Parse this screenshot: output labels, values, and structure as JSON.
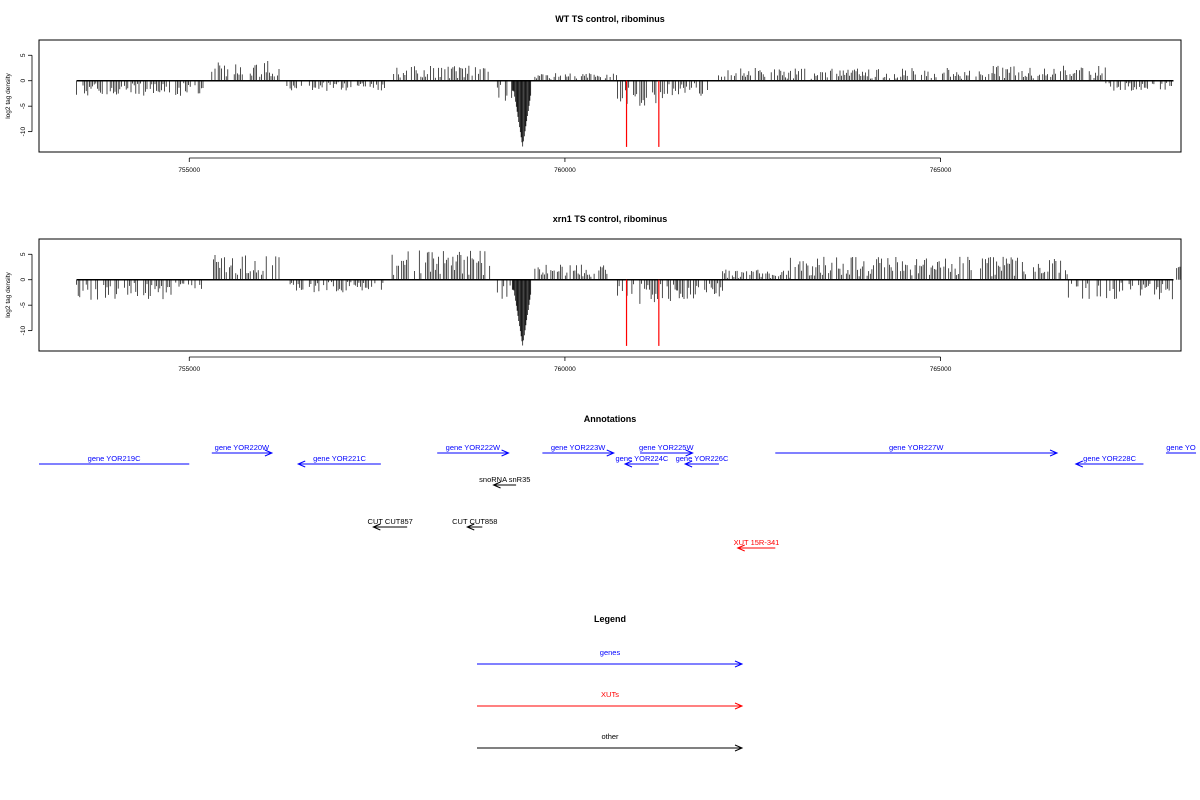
{
  "chart_data": [
    {
      "type": "bar",
      "title": "WT TS control, ribominus",
      "ylabel": "log2 tag density",
      "xlim": [
        753000,
        768200
      ],
      "ylim": [
        -14,
        8
      ],
      "xticks": [
        755000,
        760000,
        765000
      ],
      "yticks": [
        5,
        0,
        -5,
        -10
      ],
      "profile": [
        {
          "start": 753500,
          "end": 755200,
          "value": -3
        },
        {
          "start": 755300,
          "end": 756200,
          "value": 4
        },
        {
          "start": 756300,
          "end": 757600,
          "value": -2
        },
        {
          "start": 757700,
          "end": 759000,
          "value": 3
        },
        {
          "start": 759100,
          "end": 759300,
          "value": -4
        },
        {
          "start": 759300,
          "end": 759550,
          "value": -13
        },
        {
          "start": 759600,
          "end": 760700,
          "value": 1.5
        },
        {
          "start": 760700,
          "end": 761300,
          "value": -5
        },
        {
          "start": 761300,
          "end": 761900,
          "value": -3
        },
        {
          "start": 762000,
          "end": 765700,
          "value": 2.5
        },
        {
          "start": 765700,
          "end": 767200,
          "value": 3
        },
        {
          "start": 767200,
          "end": 768100,
          "value": -2
        }
      ],
      "highlight_lines": [
        {
          "x": 760820,
          "value": -13
        },
        {
          "x": 761250,
          "value": -13
        }
      ]
    },
    {
      "type": "bar",
      "title": "xrn1 TS control, ribominus",
      "ylabel": "log2 tag density",
      "xlim": [
        753000,
        768200
      ],
      "ylim": [
        -14,
        8
      ],
      "xticks": [
        755000,
        760000,
        765000
      ],
      "yticks": [
        5,
        0,
        -5,
        -10
      ],
      "profile": [
        {
          "start": 753500,
          "end": 754800,
          "value": -4
        },
        {
          "start": 754800,
          "end": 755200,
          "value": -2
        },
        {
          "start": 755300,
          "end": 756200,
          "value": 5
        },
        {
          "start": 756300,
          "end": 757600,
          "value": -2.5
        },
        {
          "start": 757700,
          "end": 759000,
          "value": 6
        },
        {
          "start": 759100,
          "end": 759300,
          "value": -4
        },
        {
          "start": 759300,
          "end": 759550,
          "value": -13
        },
        {
          "start": 759600,
          "end": 760600,
          "value": 3
        },
        {
          "start": 760700,
          "end": 761500,
          "value": -5
        },
        {
          "start": 761500,
          "end": 762100,
          "value": -4
        },
        {
          "start": 762100,
          "end": 763000,
          "value": 2
        },
        {
          "start": 763000,
          "end": 766700,
          "value": 4.5
        },
        {
          "start": 766700,
          "end": 768100,
          "value": -4
        },
        {
          "start": 768100,
          "end": 768200,
          "value": 3
        }
      ],
      "highlight_lines": [
        {
          "x": 760820,
          "value": -13
        },
        {
          "x": 761250,
          "value": -13
        }
      ]
    }
  ],
  "annotations": {
    "title": "Annotations",
    "features": [
      {
        "label": "gene YOR219C",
        "start": 753000,
        "end": 755000,
        "strand": "none",
        "row": 2,
        "color": "#0000ff"
      },
      {
        "label": "gene YOR220W",
        "start": 755300,
        "end": 756100,
        "strand": "+",
        "row": 1,
        "color": "#0000ff"
      },
      {
        "label": "gene YOR221C",
        "start": 756450,
        "end": 757550,
        "strand": "-",
        "row": 2,
        "color": "#0000ff"
      },
      {
        "label": "gene YOR222W",
        "start": 758300,
        "end": 759250,
        "strand": "+",
        "row": 1,
        "color": "#0000ff"
      },
      {
        "label": "gene YOR223W",
        "start": 759700,
        "end": 760650,
        "strand": "+",
        "row": 1,
        "color": "#0000ff"
      },
      {
        "label": "gene YOR225W",
        "start": 761000,
        "end": 761700,
        "strand": "+",
        "row": 1,
        "color": "#0000ff"
      },
      {
        "label": "gene YOR224C",
        "start": 760800,
        "end": 761250,
        "strand": "-",
        "row": 2,
        "color": "#0000ff"
      },
      {
        "label": "gene YOR226C",
        "start": 761600,
        "end": 762050,
        "strand": "-",
        "row": 2,
        "color": "#0000ff"
      },
      {
        "label": "gene YOR227W",
        "start": 762800,
        "end": 766550,
        "strand": "+",
        "row": 1,
        "color": "#0000ff"
      },
      {
        "label": "gene YOR228C",
        "start": 766800,
        "end": 767700,
        "strand": "-",
        "row": 2,
        "color": "#0000ff"
      },
      {
        "label": "gene YO",
        "start": 768000,
        "end": 768400,
        "strand": "none",
        "row": 1,
        "color": "#0000ff"
      },
      {
        "label": "snoRNA snR35",
        "start": 759050,
        "end": 759350,
        "strand": "-",
        "row": 3,
        "color": "#000000"
      },
      {
        "label": "CUT CUT857",
        "start": 757450,
        "end": 757900,
        "strand": "-",
        "row": 4,
        "color": "#000000"
      },
      {
        "label": "CUT CUT858",
        "start": 758700,
        "end": 758900,
        "strand": "-",
        "row": 4,
        "color": "#000000"
      },
      {
        "label": "XUT 15R-341",
        "start": 762300,
        "end": 762800,
        "strand": "-",
        "row": 5,
        "color": "#ff0000"
      }
    ]
  },
  "legend": {
    "title": "Legend",
    "items": [
      {
        "label": "genes",
        "color": "#0000ff"
      },
      {
        "label": "XUTs",
        "color": "#ff0000"
      },
      {
        "label": "other",
        "color": "#000000"
      }
    ]
  }
}
